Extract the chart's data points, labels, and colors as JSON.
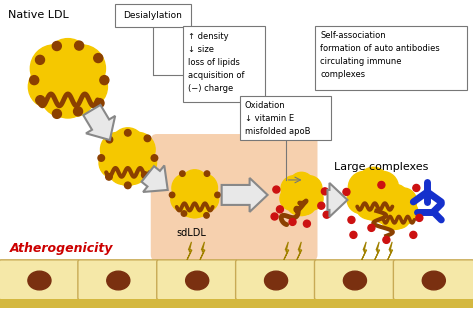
{
  "bg_color": "#ffffff",
  "native_ldl_label": "Native LDL",
  "desialylation_label": "Desialylation",
  "box1_text": "↑ density\n↓ size\nloss of lipids\nacquisition of\n(−) charge",
  "box2_text": "Oxidation\n↓ vitamin E\nmisfolded apoB",
  "box3_text": "Self-association\nformation of auto antibodies\ncirculating immune\ncomplexes",
  "large_complexes_label": "Large complexes",
  "sdldl_label": "sdLDL",
  "atherogenicity_label": "Atherogenicity",
  "sdldl_bg": "#f5c8a0",
  "cell_fill": "#f5e8a8",
  "cell_stroke": "#c8aa55",
  "cell_nucleus_fill": "#7a3010",
  "endothelium_fill": "#f0dfa0",
  "endothelium_stroke": "#c8a835",
  "yellow": "#f5c800",
  "brown": "#8b4000",
  "dark_brown": "#6b2800",
  "red_dot": "#cc1111",
  "blue_ab": "#1530cc",
  "arrow_fill": "#e8e8e8",
  "arrow_edge": "#888888",
  "lightning_yellow": "#f0d010",
  "lightning_edge": "#a08000"
}
